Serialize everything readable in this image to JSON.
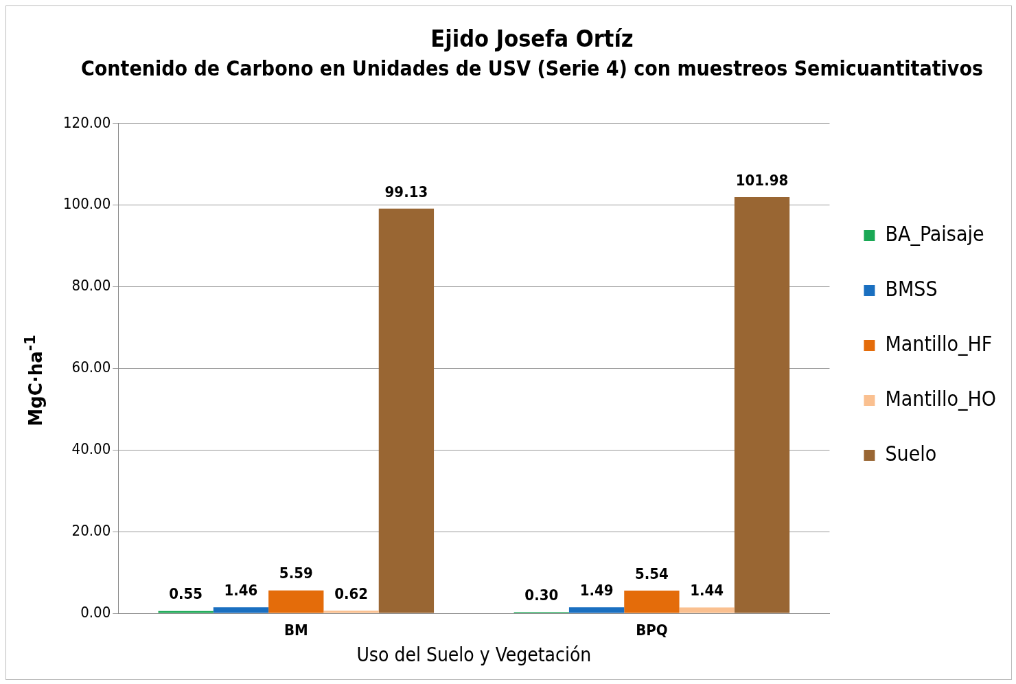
{
  "chart_data": {
    "type": "bar",
    "title": "Ejido Josefa Ortíz",
    "subtitle": "Contenido de Carbono en Unidades de USV (Serie 4) con muestreos Semicuantitativos",
    "xlabel": "Uso del Suelo y Vegetación",
    "ylabel": "MgC·ha$^{-1}$",
    "categories": [
      "BM",
      "BPQ"
    ],
    "series": [
      {
        "name": "BA_Paisaje",
        "color": "#1aa855",
        "values": [
          0.55,
          0.3
        ],
        "value_labels": [
          "0.55",
          "0.30"
        ]
      },
      {
        "name": "BMSS",
        "color": "#1a6fc0",
        "values": [
          1.46,
          1.49
        ],
        "value_labels": [
          "1.46",
          "1.49"
        ]
      },
      {
        "name": "Mantillo_HF",
        "color": "#e46c0a",
        "values": [
          5.59,
          5.54
        ],
        "value_labels": [
          "5.59",
          "5.54"
        ]
      },
      {
        "name": "Mantillo_HO",
        "color": "#fac090",
        "values": [
          0.62,
          1.44
        ],
        "value_labels": [
          "0.62",
          "1.44"
        ]
      },
      {
        "name": "Suelo",
        "color": "#996633",
        "values": [
          99.13,
          101.98
        ],
        "value_labels": [
          "99.13",
          "101.98"
        ]
      }
    ],
    "ylim": [
      0,
      120
    ],
    "yticks": [
      {
        "value": 0,
        "label": "0.00"
      },
      {
        "value": 20,
        "label": "20.00"
      },
      {
        "value": 40,
        "label": "40.00"
      },
      {
        "value": 60,
        "label": "60.00"
      },
      {
        "value": 80,
        "label": "80.00"
      },
      {
        "value": 100,
        "label": "100.00"
      },
      {
        "value": 120,
        "label": "120.00"
      }
    ],
    "grid": "y",
    "legend": "right"
  }
}
